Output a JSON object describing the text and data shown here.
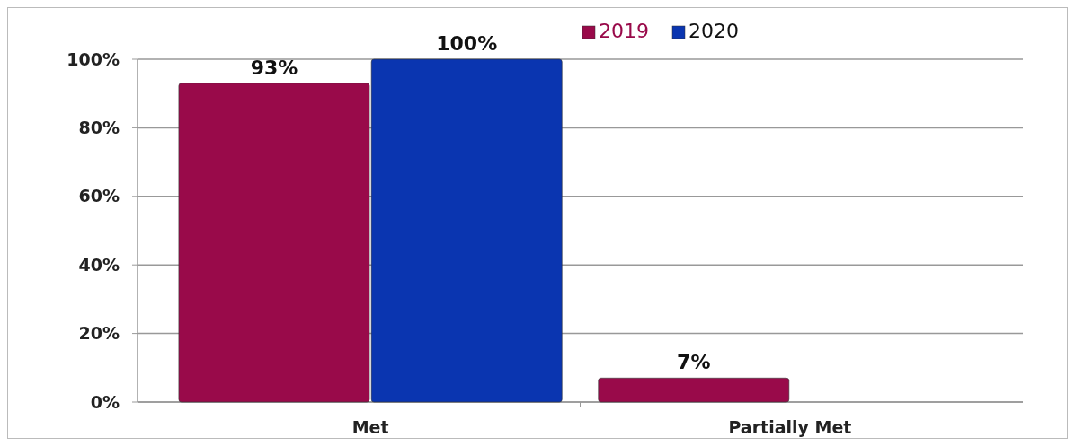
{
  "chart_data": {
    "type": "bar",
    "categories": [
      "Met",
      "Partially Met"
    ],
    "series": [
      {
        "name": "2019",
        "color": "#990a4a",
        "values": [
          93,
          7
        ],
        "value_labels": [
          "93%",
          "7%"
        ]
      },
      {
        "name": "2020",
        "color": "#0a35b0",
        "values": [
          100,
          null
        ],
        "value_labels": [
          "100%",
          null
        ]
      }
    ],
    "ylim": [
      0,
      100
    ],
    "yticks": [
      {
        "value": 0,
        "label": "0%"
      },
      {
        "value": 20,
        "label": "20%"
      },
      {
        "value": 40,
        "label": "40%"
      },
      {
        "value": 60,
        "label": "60%"
      },
      {
        "value": 80,
        "label": "80%"
      },
      {
        "value": 100,
        "label": "100%"
      }
    ],
    "grid": "y",
    "legend": "top"
  }
}
